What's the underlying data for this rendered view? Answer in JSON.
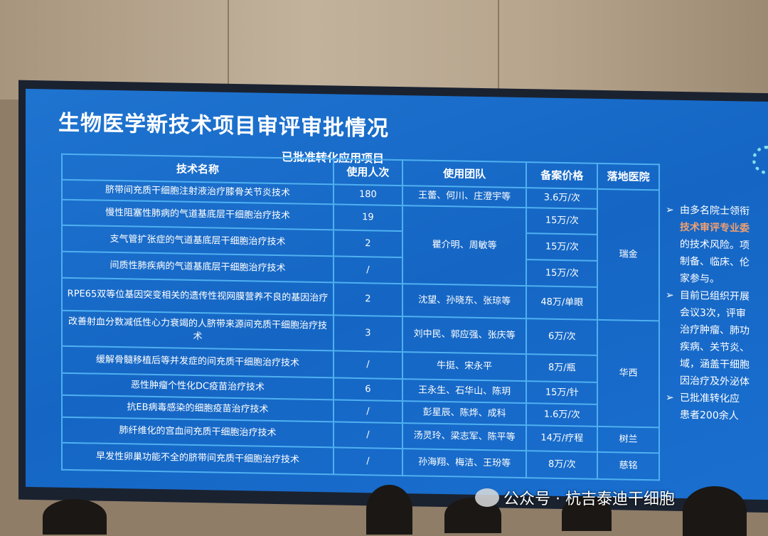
{
  "slide": {
    "title": "生物医学新技术项目审评审批情况",
    "subtitle": "已批准转化应用项目",
    "table": {
      "headers": [
        "技术名称",
        "使用人次",
        "使用团队",
        "备案价格",
        "落地医院"
      ],
      "rows": [
        {
          "name": "脐带间充质干细胞注射液治疗膝骨关节炎技术",
          "count": "180",
          "team": "王蕾、何川、庄澄宇等",
          "price": "3.6万/次"
        },
        {
          "name": "慢性阻塞性肺病的气道基底层干细胞治疗技术",
          "count": "19",
          "price": "15万/次"
        },
        {
          "name": "支气管扩张症的气道基底层干细胞治疗技术",
          "count": "2",
          "price": "15万/次"
        },
        {
          "name": "间质性肺疾病的气道基底层干细胞治疗技术",
          "count": "/",
          "price": "15万/次"
        },
        {
          "name": "RPE65双等位基因突变相关的遗传性视网膜营养不良的基因治疗",
          "count": "2",
          "team": "沈望、孙晓东、张琼等",
          "price": "48万/单眼"
        },
        {
          "name": "改善射血分数减低性心力衰竭的人脐带来源间充质干细胞治疗技术",
          "count": "3",
          "team": "刘中民、郭应强、张庆等",
          "price": "6万/次"
        },
        {
          "name": "缓解骨髓移植后等并发症的间充质干细胞治疗技术",
          "count": "/",
          "team": "牛挺、宋永平",
          "price": "8万/瓶"
        },
        {
          "name": "恶性肿瘤个性化DC疫苗治疗技术",
          "count": "6",
          "team": "王永生、石华山、陈玥",
          "price": "15万/针"
        },
        {
          "name": "抗EB病毒感染的细胞疫苗治疗技术",
          "count": "/",
          "team": "彭星辰、陈烨、成科",
          "price": "1.6万/次"
        },
        {
          "name": "肺纤维化的宫血间充质干细胞治疗技术",
          "count": "/",
          "team": "汤灵玲、梁志军、陈平等",
          "price": "14万/疗程",
          "hospital": "树兰"
        },
        {
          "name": "早发性卵巢功能不全的脐带间充质干细胞治疗技术",
          "count": "/",
          "team": "孙海翔、梅洁、王玢等",
          "price": "8万/次",
          "hospital": "慈铭"
        }
      ],
      "merged_team_2_4": "瞿介明、周敏等",
      "hospital_1_5": "瑞金",
      "hospital_6_9": "华西"
    },
    "side_bullets": [
      {
        "lines": [
          "由多名院士领衔",
          "技术审评专业委",
          "的技术风险。项",
          "制备、临床、伦",
          "家参与。"
        ]
      },
      {
        "lines": [
          "目前已组织开展",
          "会议3次，评审",
          "治疗肿瘤、肺功",
          "疾病、关节炎、",
          "域，涵盖干细胞",
          "因治疗及外泌体"
        ]
      },
      {
        "lines": [
          "已批准转化应",
          "患者200余人"
        ]
      }
    ]
  },
  "watermark": "公众号 · 杭吉泰迪干细胞"
}
